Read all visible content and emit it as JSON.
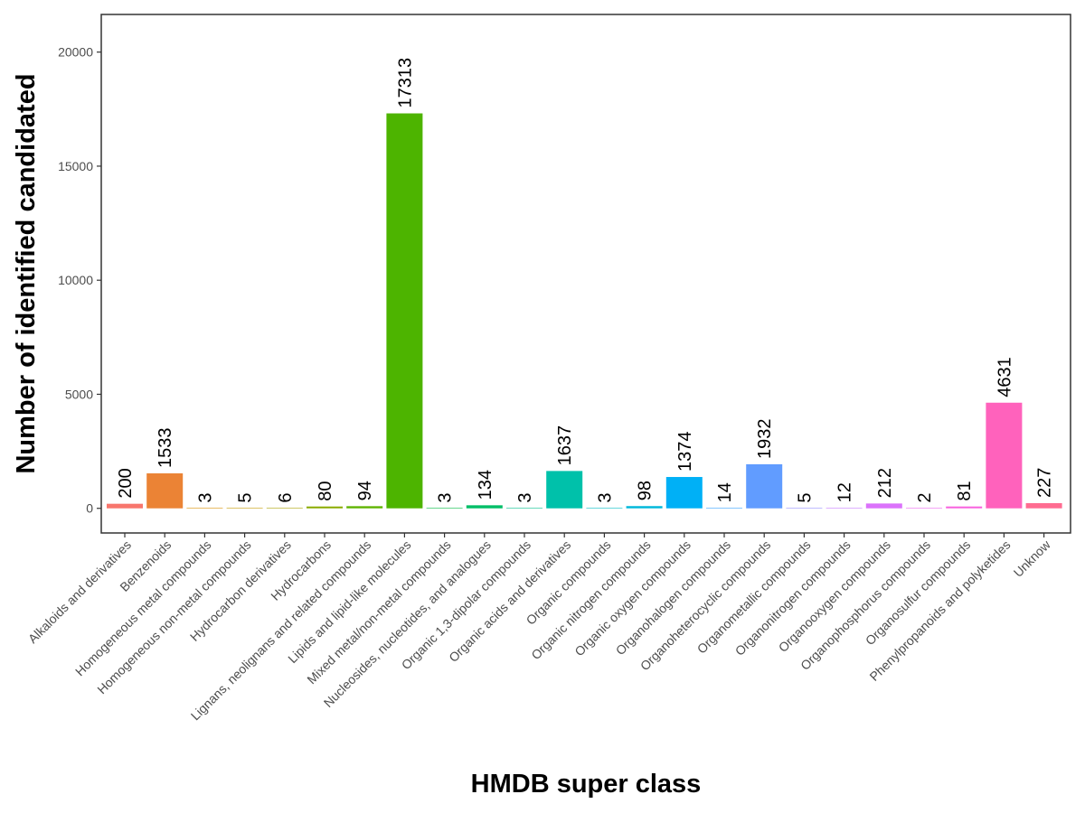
{
  "chart_data": {
    "type": "bar",
    "xlabel": "HMDB super class",
    "ylabel": "Number of identified candidated",
    "ylim": [
      -1080,
      21650
    ],
    "yticks": [
      0,
      5000,
      10000,
      15000,
      20000
    ],
    "grid": false,
    "legend": "none",
    "categories": [
      "Alkaloids and derivatives",
      "Benzenoids",
      "Homogeneous metal compounds",
      "Homogeneous non-metal compounds",
      "Hydrocarbon derivatives",
      "Hydrocarbons",
      "Lignans, neolignans and related compounds",
      "Lipids and lipid-like molecules",
      "Mixed metal/non-metal compounds",
      "Nucleosides, nucleotides, and analogues",
      "Organic 1,3-dipolar compounds",
      "Organic acids and derivatives",
      "Organic compounds",
      "Organic nitrogen compounds",
      "Organic oxygen compounds",
      "Organohalogen compounds",
      "Organoheterocyclic compounds",
      "Organometallic compounds",
      "Organonitrogen compounds",
      "Organooxygen compounds",
      "Organophosphorus compounds",
      "Organosulfur compounds",
      "Phenylpropanoids and polyketides",
      "Unknow"
    ],
    "values": [
      200,
      1533,
      3,
      5,
      6,
      80,
      94,
      17313,
      3,
      134,
      3,
      1637,
      3,
      98,
      1374,
      14,
      1932,
      5,
      12,
      212,
      2,
      81,
      4631,
      227
    ],
    "colors": [
      "#F8766D",
      "#EB8335",
      "#DA8F00",
      "#C49A00",
      "#AAA200",
      "#8BAB00",
      "#5EB300",
      "#4DB400",
      "#00BA42",
      "#00BE67",
      "#00C08D",
      "#00C1AA",
      "#00BFC4",
      "#00B8DA",
      "#00B0F6",
      "#35A2FF",
      "#619CFF",
      "#9590FF",
      "#C77CFF",
      "#DB72FB",
      "#EC69EF",
      "#F863DF",
      "#FF62BC",
      "#FF6C91"
    ]
  }
}
